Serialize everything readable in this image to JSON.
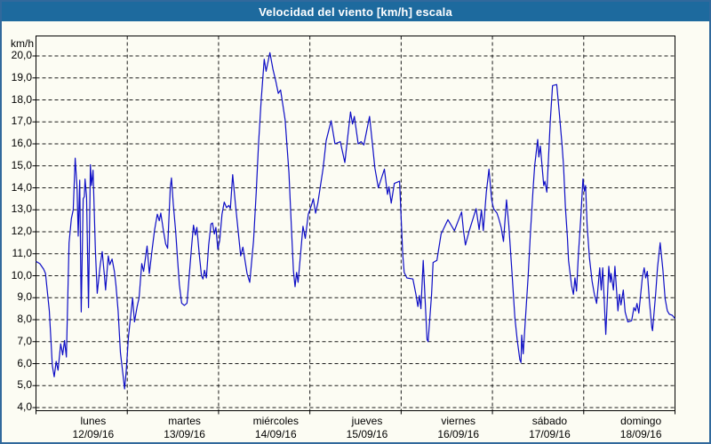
{
  "window": {
    "title": "Velocidad del viento [km/h] escala"
  },
  "colors": {
    "title_bar_bg": "#1d6a9e",
    "title_text": "#ffffff",
    "frame_border": "#31699c",
    "background": "#fcfcf3",
    "plot_border": "#000000",
    "gridline": "#1b1b1b",
    "series_line": "#0e0ec6",
    "label_text": "#000000"
  },
  "y_axis": {
    "unit_label": "km/h",
    "tick_labels": [
      "20,0",
      "19,0",
      "18,0",
      "17,0",
      "16,0",
      "15,0",
      "14,0",
      "13,0",
      "12,0",
      "11,0",
      "10,0",
      "9,0",
      "8,0",
      "7,0",
      "6,0",
      "5,0",
      "4,0"
    ],
    "tick_values": [
      20,
      19,
      18,
      17,
      16,
      15,
      14,
      13,
      12,
      11,
      10,
      9,
      8,
      7,
      6,
      5,
      4
    ]
  },
  "x_axis": {
    "days": [
      {
        "name": "lunes",
        "date": "12/09/16"
      },
      {
        "name": "martes",
        "date": "13/09/16"
      },
      {
        "name": "miércoles",
        "date": "14/09/16"
      },
      {
        "name": "jueves",
        "date": "15/09/16"
      },
      {
        "name": "viernes",
        "date": "16/09/16"
      },
      {
        "name": "sábado",
        "date": "17/09/16"
      },
      {
        "name": "domingo",
        "date": "18/09/16"
      }
    ]
  },
  "chart_data": {
    "type": "line",
    "title": "Velocidad del viento [km/h] escala",
    "ylabel": "km/h",
    "xlabel": "",
    "x_unit": "hours since 12/09/16 00:00",
    "xlim": [
      0,
      168
    ],
    "ylim": [
      4,
      21
    ],
    "grid": true,
    "legend": "none",
    "series": [
      {
        "name": "Velocidad del viento",
        "points": [
          [
            0,
            10.65
          ],
          [
            1,
            10.55
          ],
          [
            2,
            10.3
          ],
          [
            2.5,
            10.1
          ],
          [
            3.5,
            8.4
          ],
          [
            4.3,
            5.9
          ],
          [
            4.8,
            5.4
          ],
          [
            5.3,
            6.1
          ],
          [
            5.8,
            5.7
          ],
          [
            6.5,
            6.9
          ],
          [
            7,
            6.4
          ],
          [
            7.5,
            7.05
          ],
          [
            8,
            6.3
          ],
          [
            8.7,
            11.5
          ],
          [
            9.3,
            12.6
          ],
          [
            9.8,
            13.0
          ],
          [
            10.3,
            15.35
          ],
          [
            10.8,
            14.0
          ],
          [
            11.1,
            11.8
          ],
          [
            11.5,
            14.35
          ],
          [
            11.9,
            8.35
          ],
          [
            12.4,
            13.5
          ],
          [
            12.7,
            13.6
          ],
          [
            12.9,
            14.4
          ],
          [
            13.3,
            13.6
          ],
          [
            13.8,
            8.55
          ],
          [
            14.3,
            15.05
          ],
          [
            14.6,
            14.1
          ],
          [
            15,
            14.8
          ],
          [
            15.6,
            11.2
          ],
          [
            16.1,
            9.2
          ],
          [
            16.9,
            10.5
          ],
          [
            17.4,
            11.1
          ],
          [
            18,
            10.0
          ],
          [
            18.3,
            9.35
          ],
          [
            19,
            10.9
          ],
          [
            19.4,
            10.5
          ],
          [
            20,
            10.76
          ],
          [
            20.6,
            10.2
          ],
          [
            21,
            9.6
          ],
          [
            21.6,
            8.4
          ],
          [
            22.2,
            6.5
          ],
          [
            22.8,
            5.6
          ],
          [
            23.3,
            4.85
          ],
          [
            23.7,
            5.6
          ],
          [
            24.3,
            7.2
          ],
          [
            24.9,
            8.2
          ],
          [
            25.4,
            9.0
          ],
          [
            25.9,
            7.9
          ],
          [
            26.6,
            8.6
          ],
          [
            27.1,
            9.0
          ],
          [
            27.8,
            10.55
          ],
          [
            28.3,
            10.2
          ],
          [
            29.2,
            11.35
          ],
          [
            29.8,
            10.1
          ],
          [
            30.6,
            11.3
          ],
          [
            31.2,
            12.1
          ],
          [
            31.9,
            12.8
          ],
          [
            32.4,
            12.5
          ],
          [
            32.8,
            12.85
          ],
          [
            33.5,
            12.05
          ],
          [
            34.1,
            11.45
          ],
          [
            34.6,
            11.25
          ],
          [
            35.3,
            14.0
          ],
          [
            35.6,
            14.45
          ],
          [
            36.1,
            13.25
          ],
          [
            36.7,
            12.05
          ],
          [
            37.2,
            10.8
          ],
          [
            37.7,
            9.6
          ],
          [
            38.3,
            8.75
          ],
          [
            39,
            8.65
          ],
          [
            39.7,
            8.75
          ],
          [
            40.3,
            10.05
          ],
          [
            40.9,
            11.3
          ],
          [
            41.4,
            12.3
          ],
          [
            41.9,
            11.85
          ],
          [
            42.3,
            12.2
          ],
          [
            43,
            10.85
          ],
          [
            43.5,
            10.0
          ],
          [
            43.9,
            9.85
          ],
          [
            44.3,
            10.25
          ],
          [
            44.8,
            9.9
          ],
          [
            45.4,
            11.4
          ],
          [
            46,
            12.35
          ],
          [
            46.4,
            12.4
          ],
          [
            46.9,
            11.9
          ],
          [
            47.3,
            12.2
          ],
          [
            47.8,
            11.2
          ],
          [
            48.3,
            11.6
          ],
          [
            48.9,
            12.8
          ],
          [
            49.5,
            13.35
          ],
          [
            50.1,
            13.1
          ],
          [
            50.7,
            13.2
          ],
          [
            51.1,
            13.05
          ],
          [
            51.7,
            14.6
          ],
          [
            52.4,
            13.3
          ],
          [
            53.1,
            12.1
          ],
          [
            53.8,
            10.9
          ],
          [
            54.4,
            11.3
          ],
          [
            55.5,
            10.1
          ],
          [
            56.2,
            9.7
          ],
          [
            57.2,
            11.6
          ],
          [
            57.9,
            13.8
          ],
          [
            58.5,
            16.0
          ],
          [
            59.2,
            18.0
          ],
          [
            60,
            19.85
          ],
          [
            60.5,
            19.3
          ],
          [
            61.5,
            20.15
          ],
          [
            62.3,
            19.4
          ],
          [
            63.1,
            18.8
          ],
          [
            63.7,
            18.3
          ],
          [
            64.3,
            18.45
          ],
          [
            65.5,
            17.1
          ],
          [
            66.5,
            14.7
          ],
          [
            67.2,
            12.0
          ],
          [
            67.7,
            10.2
          ],
          [
            68.1,
            9.5
          ],
          [
            68.5,
            10.15
          ],
          [
            68.9,
            9.7
          ],
          [
            70.2,
            12.25
          ],
          [
            70.8,
            11.7
          ],
          [
            71.6,
            12.8
          ],
          [
            72.4,
            13.2
          ],
          [
            72.9,
            13.5
          ],
          [
            73.5,
            12.85
          ],
          [
            74.1,
            13.3
          ],
          [
            75.5,
            14.9
          ],
          [
            76.3,
            16.15
          ],
          [
            77.6,
            17.05
          ],
          [
            78.6,
            16.0
          ],
          [
            80,
            16.1
          ],
          [
            81.2,
            15.15
          ],
          [
            82.7,
            17.45
          ],
          [
            83.2,
            16.9
          ],
          [
            83.7,
            17.25
          ],
          [
            84.7,
            16.0
          ],
          [
            85.5,
            16.1
          ],
          [
            86.2,
            15.95
          ],
          [
            87.7,
            17.25
          ],
          [
            88.5,
            15.9
          ],
          [
            89.1,
            14.9
          ],
          [
            90,
            14.0
          ],
          [
            91.6,
            14.85
          ],
          [
            92.4,
            13.7
          ],
          [
            92.8,
            14.05
          ],
          [
            93.4,
            13.3
          ],
          [
            94.2,
            14.2
          ],
          [
            95.6,
            14.3
          ],
          [
            96.4,
            11.0
          ],
          [
            96.8,
            10.15
          ],
          [
            97.5,
            9.9
          ],
          [
            99.1,
            9.85
          ],
          [
            99.9,
            9.15
          ],
          [
            100.4,
            8.6
          ],
          [
            100.8,
            9.1
          ],
          [
            101.2,
            8.5
          ],
          [
            101.8,
            10.7
          ],
          [
            102.8,
            7.1
          ],
          [
            103.1,
            7.0
          ],
          [
            104,
            9.15
          ],
          [
            104.4,
            10.6
          ],
          [
            105.4,
            10.7
          ],
          [
            106.5,
            11.9
          ],
          [
            108.3,
            12.55
          ],
          [
            110,
            12.05
          ],
          [
            111.9,
            12.9
          ],
          [
            112.4,
            12.05
          ],
          [
            112.9,
            11.4
          ],
          [
            113.9,
            12.05
          ],
          [
            115.7,
            13.05
          ],
          [
            116.5,
            12.1
          ],
          [
            117.1,
            13.0
          ],
          [
            117.6,
            12.05
          ],
          [
            118.4,
            13.8
          ],
          [
            119.1,
            14.85
          ],
          [
            119.8,
            13.45
          ],
          [
            120.3,
            13.05
          ],
          [
            121.2,
            12.85
          ],
          [
            121.7,
            12.58
          ],
          [
            122.3,
            12.2
          ],
          [
            122.9,
            11.56
          ],
          [
            123.7,
            13.45
          ],
          [
            124.3,
            12.3
          ],
          [
            125.2,
            10.0
          ],
          [
            125.9,
            8.1
          ],
          [
            126.5,
            7.1
          ],
          [
            127.2,
            6.18
          ],
          [
            127.5,
            6.05
          ],
          [
            127.7,
            7.3
          ],
          [
            128.1,
            6.45
          ],
          [
            129.4,
            10.0
          ],
          [
            130,
            12.0
          ],
          [
            130.7,
            14.0
          ],
          [
            131.1,
            15.0
          ],
          [
            131.9,
            16.2
          ],
          [
            132.2,
            15.4
          ],
          [
            132.6,
            15.9
          ],
          [
            133.5,
            14.1
          ],
          [
            133.8,
            14.3
          ],
          [
            134.3,
            13.8
          ],
          [
            135.2,
            17.0
          ],
          [
            135.8,
            18.65
          ],
          [
            136.9,
            18.7
          ],
          [
            137.5,
            17.55
          ],
          [
            138.3,
            15.95
          ],
          [
            138.7,
            15.0
          ],
          [
            139.2,
            13.1
          ],
          [
            139.7,
            11.77
          ],
          [
            140,
            10.7
          ],
          [
            140.8,
            9.55
          ],
          [
            141.3,
            9.15
          ],
          [
            141.7,
            9.9
          ],
          [
            142.1,
            9.3
          ],
          [
            142.6,
            10.96
          ],
          [
            143.2,
            12.58
          ],
          [
            143.8,
            14.4
          ],
          [
            144.2,
            13.85
          ],
          [
            144.5,
            14.1
          ],
          [
            144.9,
            12.3
          ],
          [
            145.5,
            10.83
          ],
          [
            146.2,
            9.75
          ],
          [
            146.8,
            9.15
          ],
          [
            147.4,
            8.74
          ],
          [
            148.2,
            10.36
          ],
          [
            148.6,
            9.35
          ],
          [
            149,
            10.36
          ],
          [
            149.8,
            7.33
          ],
          [
            150.6,
            10.43
          ],
          [
            151,
            9.7
          ],
          [
            151.2,
            10.1
          ],
          [
            151.8,
            9.35
          ],
          [
            152.2,
            10.43
          ],
          [
            153,
            8.4
          ],
          [
            153.4,
            9.15
          ],
          [
            153.8,
            8.67
          ],
          [
            154.4,
            9.35
          ],
          [
            154.9,
            8.35
          ],
          [
            155.6,
            7.9
          ],
          [
            156.6,
            7.95
          ],
          [
            157.2,
            8.55
          ],
          [
            157.6,
            8.4
          ],
          [
            158,
            8.74
          ],
          [
            158.5,
            8.3
          ],
          [
            159.4,
            9.9
          ],
          [
            159.9,
            10.36
          ],
          [
            160.3,
            9.9
          ],
          [
            160.7,
            10.2
          ],
          [
            161.3,
            8.8
          ],
          [
            161.9,
            7.65
          ],
          [
            162.1,
            7.5
          ],
          [
            162.9,
            9.15
          ],
          [
            163.4,
            10.36
          ],
          [
            164.1,
            11.5
          ],
          [
            164.8,
            10.3
          ],
          [
            165.4,
            8.95
          ],
          [
            166,
            8.4
          ],
          [
            166.5,
            8.25
          ],
          [
            167.3,
            8.2
          ],
          [
            168,
            8.05
          ]
        ]
      }
    ]
  }
}
